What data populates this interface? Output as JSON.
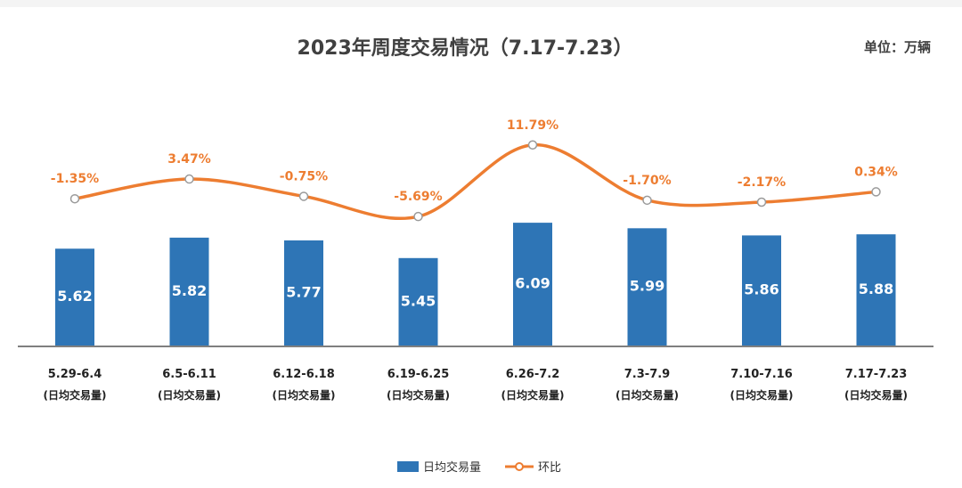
{
  "chart_data": {
    "type": "bar",
    "title": "2023年周度交易情况（7.17-7.23）",
    "unit_label": "单位：万辆",
    "categories": [
      "5.29-6.4",
      "6.5-6.11",
      "6.12-6.18",
      "6.19-6.25",
      "6.26-7.2",
      "7.3-7.9",
      "7.10-7.16",
      "7.17-7.23"
    ],
    "category_sublabel": "(日均交易量)",
    "series": [
      {
        "name": "日均交易量",
        "type": "bar",
        "color": "#2E75B6",
        "values": [
          5.62,
          5.82,
          5.77,
          5.45,
          6.09,
          5.99,
          5.86,
          5.88
        ],
        "labels": [
          "5.62",
          "5.82",
          "5.77",
          "5.45",
          "6.09",
          "5.99",
          "5.86",
          "5.88"
        ]
      },
      {
        "name": "环比",
        "type": "line",
        "color": "#ED7D31",
        "values": [
          -1.35,
          3.47,
          -0.75,
          -5.69,
          11.79,
          -1.7,
          -2.17,
          0.34
        ],
        "labels": [
          "-1.35%",
          "3.47%",
          "-0.75%",
          "-5.69%",
          "11.79%",
          "-1.70%",
          "-2.17%",
          "0.34%"
        ]
      }
    ],
    "legend": [
      "日均交易量",
      "环比"
    ],
    "legend_position": "bottom-center",
    "grid": false
  }
}
